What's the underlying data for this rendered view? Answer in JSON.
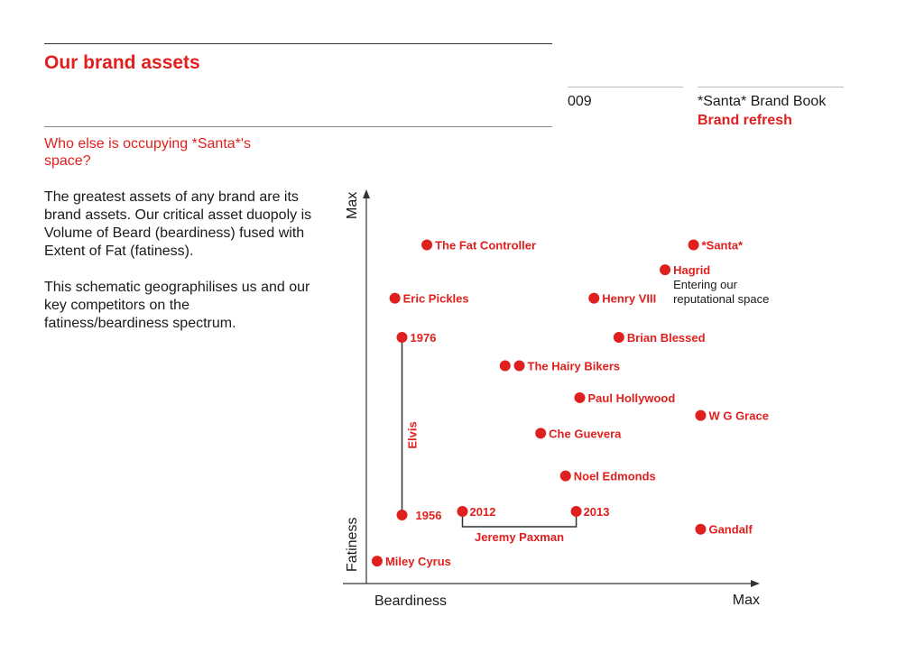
{
  "header": {
    "title": "Our brand assets",
    "page_number": "009",
    "book_title": "*Santa* Brand Book",
    "book_subtitle": "Brand refresh"
  },
  "intro": {
    "heading": "Who else is occupying *Santa*'s space?",
    "paragraph1": "The greatest assets of any brand are its brand assets. Our critical asset duopoly is Volume of Beard (beardiness) fused with Extent of Fat (fatiness).",
    "paragraph2": "This schematic geographilises us and our key competitors on the fatiness/beardiness spectrum."
  },
  "colors": {
    "accent": "#e0201e",
    "text": "#1a1a1a",
    "axis": "#333333"
  },
  "chart_data": {
    "type": "scatter",
    "title": "",
    "xlabel": "Beardiness",
    "ylabel": "Fatiness",
    "x_max_label": "Max",
    "y_max_label": "Max",
    "xlim": [
      0,
      100
    ],
    "ylim": [
      0,
      100
    ],
    "grid": false,
    "points": [
      {
        "label": "The Fat Controller",
        "x": 15,
        "y": 92
      },
      {
        "label": "*Santa*",
        "x": 90,
        "y": 92
      },
      {
        "label": "Hagrid",
        "x": 82,
        "y": 85
      },
      {
        "label": "Eric Pickles",
        "x": 6,
        "y": 77
      },
      {
        "label": "Henry VIII",
        "x": 62,
        "y": 77
      },
      {
        "label": "Brian Blessed",
        "x": 69,
        "y": 66
      },
      {
        "label": "",
        "x": 37,
        "y": 58
      },
      {
        "label": "The Hairy Bikers",
        "x": 41,
        "y": 58
      },
      {
        "label": "Paul Hollywood",
        "x": 58,
        "y": 49
      },
      {
        "label": "W G Grace",
        "x": 92,
        "y": 44
      },
      {
        "label": "Che Guevera",
        "x": 47,
        "y": 39
      },
      {
        "label": "Noel Edmonds",
        "x": 54,
        "y": 27
      },
      {
        "label": "Gandalf",
        "x": 92,
        "y": 12
      },
      {
        "label": "Miley Cyrus",
        "x": 1,
        "y": 3
      }
    ],
    "annotations": [
      {
        "point": "Hagrid",
        "text_lines": [
          "Entering our",
          "reputational space"
        ]
      }
    ],
    "ranges": [
      {
        "name": "Elvis",
        "orientation": "vertical",
        "start": {
          "label": "1956",
          "x": 8,
          "y": 16
        },
        "end": {
          "label": "1976",
          "x": 8,
          "y": 66
        }
      },
      {
        "name": "Jeremy Paxman",
        "orientation": "horizontal",
        "start": {
          "label": "2012",
          "x": 25,
          "y": 17
        },
        "end": {
          "label": "2013",
          "x": 57,
          "y": 17
        }
      }
    ]
  }
}
